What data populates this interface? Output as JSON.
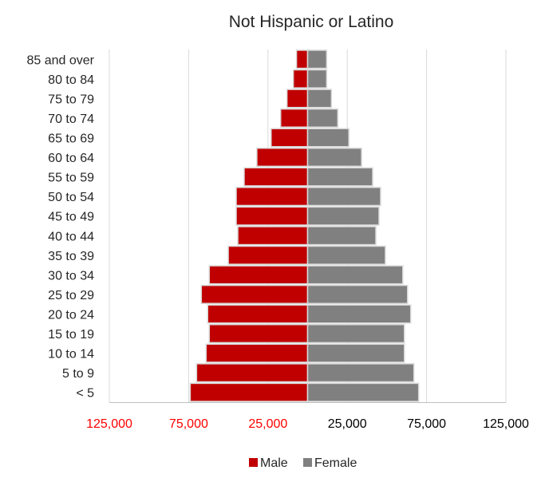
{
  "chart_data": {
    "type": "bar",
    "orientation": "horizontal",
    "title": "Not Hispanic or Latino",
    "xlabel": "",
    "ylabel": "",
    "categories": [
      "< 5",
      "5 to 9",
      "10 to 14",
      "15 to 19",
      "20 to 24",
      "25 to 29",
      "30 to 34",
      "35 to 39",
      "40 to 44",
      "45 to 49",
      "50 to 54",
      "55 to 59",
      "60 to 64",
      "65 to 69",
      "70 to 74",
      "75 to 79",
      "80 to 84",
      "85 and over"
    ],
    "series": [
      {
        "name": "Male",
        "color": "#c00000",
        "values": [
          74000,
          70000,
          64000,
          62000,
          63000,
          67000,
          62000,
          50000,
          44000,
          45000,
          45000,
          40000,
          32000,
          23000,
          17000,
          13000,
          9000,
          7000
        ]
      },
      {
        "name": "Female",
        "color": "#808080",
        "values": [
          70000,
          67000,
          61000,
          61000,
          65000,
          63000,
          60000,
          49000,
          43000,
          45000,
          46000,
          41000,
          34000,
          26000,
          19000,
          15000,
          12000,
          12000
        ]
      }
    ],
    "xlim": [
      -125000,
      125000
    ],
    "xticks": [
      -125000,
      -75000,
      -25000,
      25000,
      75000,
      125000
    ],
    "xtick_labels": [
      "125,000",
      "75,000",
      "25,000",
      "25,000",
      "75,000",
      "125,000"
    ],
    "negative_tick_color": "#ff0000",
    "positive_tick_color": "#000000",
    "grid": true,
    "legend_position": "bottom"
  }
}
